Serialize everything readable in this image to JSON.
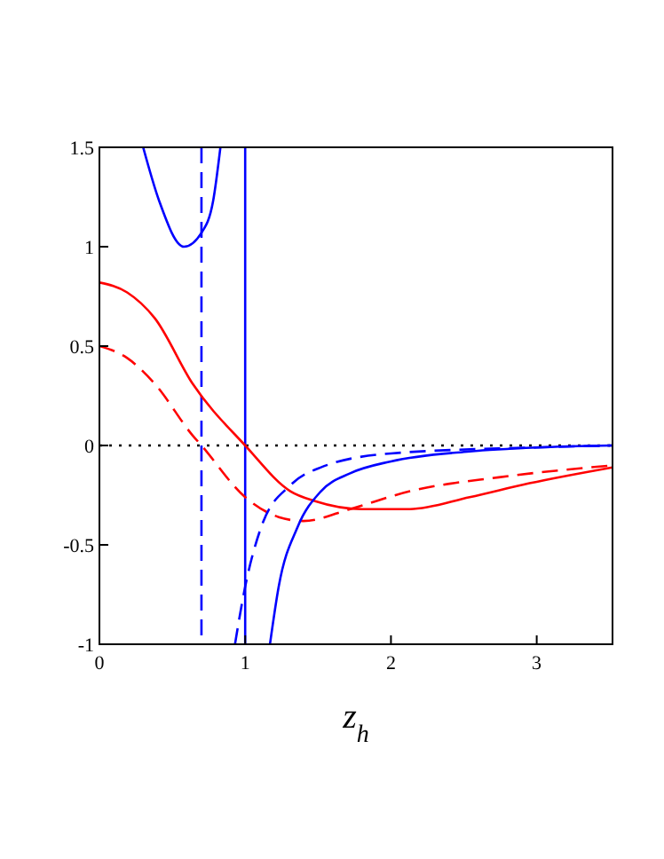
{
  "chart_data": {
    "type": "line",
    "xlabel": "z$_{h}$",
    "xlim": [
      0,
      3.52
    ],
    "ylim": [
      -1,
      1.5
    ],
    "xticks": [
      0,
      1,
      2,
      3
    ],
    "yticks": [
      -1,
      -0.5,
      0,
      0.5,
      1,
      1.5
    ],
    "grid": false,
    "series": [
      {
        "color": "#ff0000",
        "line_style": "solid",
        "x": [
          0,
          0.19,
          0.38,
          0.64,
          1.0,
          1.31,
          1.48,
          1.8,
          2.13,
          2.54,
          2.95,
          3.52
        ],
        "values": [
          0.82,
          0.77,
          0.64,
          0.31,
          0,
          -0.23,
          -0.28,
          -0.32,
          -0.32,
          -0.26,
          -0.19,
          -0.11
        ]
      },
      {
        "color": "#ff0000",
        "line_style": "dashed",
        "x": [
          0,
          0.19,
          0.38,
          0.64,
          0.7,
          1.0,
          1.23,
          1.4,
          1.72,
          2.13,
          2.74,
          3.52
        ],
        "values": [
          0.5,
          0.44,
          0.31,
          0.05,
          0,
          -0.26,
          -0.36,
          -0.38,
          -0.32,
          -0.23,
          -0.16,
          -0.1
        ]
      },
      {
        "color": "#0000ff",
        "line_style": "solid",
        "x": [
          0.3,
          0.41,
          0.58,
          0.7,
          0.78,
          0.83,
          1.0,
          1.17,
          1.23,
          1.36,
          1.52,
          1.72,
          2.0,
          2.54,
          3.0,
          3.52
        ],
        "values": [
          1.5,
          1.23,
          1.0,
          1.07,
          1.23,
          1.5,
          null,
          -1,
          -0.71,
          -0.41,
          -0.23,
          -0.14,
          -0.08,
          -0.03,
          -0.01,
          0
        ]
      },
      {
        "color": "#0000ff",
        "line_style": "dashed",
        "x": [
          0.93,
          1.0,
          1.11,
          1.31,
          1.52,
          2.0,
          3.0,
          3.52
        ],
        "values": [
          -1,
          -0.71,
          -0.41,
          -0.2,
          -0.11,
          -0.04,
          -0.01,
          0
        ]
      }
    ],
    "ref_lines": [
      {
        "axis": "y",
        "value": 0,
        "color": "#000000",
        "line_style": "dotted"
      },
      {
        "axis": "x",
        "value": 0.7,
        "color": "#0000ff",
        "line_style": "dashed"
      },
      {
        "axis": "x",
        "value": 1,
        "color": "#0000ff",
        "line_style": "solid"
      }
    ]
  }
}
